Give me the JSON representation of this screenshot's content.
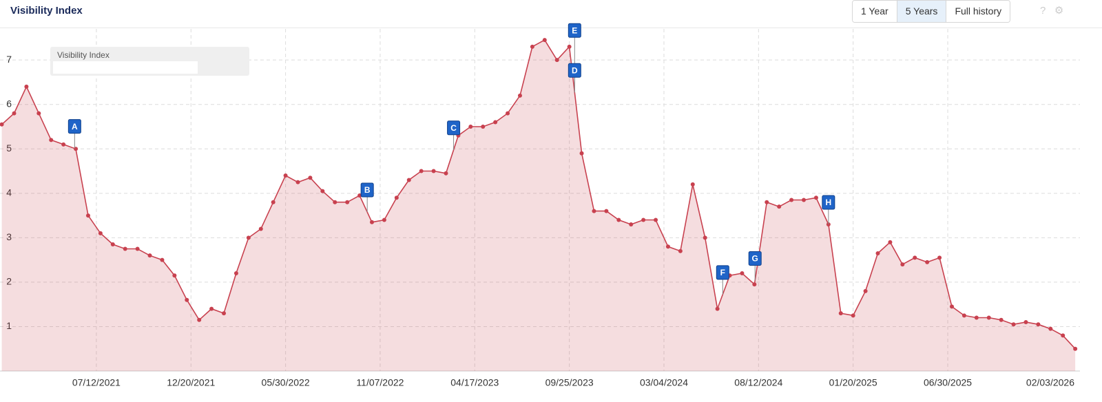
{
  "header": {
    "title": "Visibility Index",
    "buttons": [
      "1 Year",
      "5 Years",
      "Full history"
    ],
    "selected_button": 1
  },
  "chart_data": {
    "type": "area",
    "ylim": [
      0,
      7.7
    ],
    "yticks": [
      1,
      2,
      3,
      4,
      5,
      6,
      7
    ],
    "grid": true,
    "xlim": [
      "2021-01-29",
      "2026-02-03"
    ],
    "xticks": [
      {
        "value": "2021-07-12",
        "label": "07/12/2021"
      },
      {
        "value": "2021-12-20",
        "label": "12/20/2021"
      },
      {
        "value": "2022-05-30",
        "label": "05/30/2022"
      },
      {
        "value": "2022-11-07",
        "label": "11/07/2022"
      },
      {
        "value": "2023-04-17",
        "label": "04/17/2023"
      },
      {
        "value": "2023-09-25",
        "label": "09/25/2023"
      },
      {
        "value": "2024-03-04",
        "label": "03/04/2024"
      },
      {
        "value": "2024-08-12",
        "label": "08/12/2024"
      },
      {
        "value": "2025-01-20",
        "label": "01/20/2025"
      },
      {
        "value": "2025-06-30",
        "label": "06/30/2025"
      },
      {
        "value": "2026-02-03",
        "label": "02/03/2026"
      }
    ],
    "x": [
      "2021-02-01",
      "2021-02-22",
      "2021-03-15",
      "2021-04-05",
      "2021-04-26",
      "2021-05-17",
      "2021-06-07",
      "2021-06-28",
      "2021-07-19",
      "2021-08-09",
      "2021-08-30",
      "2021-09-20",
      "2021-10-11",
      "2021-11-01",
      "2021-11-22",
      "2021-12-13",
      "2022-01-03",
      "2022-01-24",
      "2022-02-14",
      "2022-03-07",
      "2022-03-28",
      "2022-04-18",
      "2022-05-09",
      "2022-05-30",
      "2022-06-20",
      "2022-07-11",
      "2022-08-01",
      "2022-08-22",
      "2022-09-12",
      "2022-10-03",
      "2022-10-24",
      "2022-11-14",
      "2022-12-05",
      "2022-12-26",
      "2023-01-16",
      "2023-02-06",
      "2023-02-27",
      "2023-03-20",
      "2023-04-10",
      "2023-05-01",
      "2023-05-22",
      "2023-06-12",
      "2023-07-03",
      "2023-07-24",
      "2023-08-14",
      "2023-09-04",
      "2023-09-25",
      "2023-10-16",
      "2023-11-06",
      "2023-11-27",
      "2023-12-18",
      "2024-01-08",
      "2024-01-29",
      "2024-02-19",
      "2024-03-11",
      "2024-04-01",
      "2024-04-22",
      "2024-05-13",
      "2024-06-03",
      "2024-06-24",
      "2024-07-15",
      "2024-08-05",
      "2024-08-26",
      "2024-09-16",
      "2024-10-07",
      "2024-10-28",
      "2024-11-18",
      "2024-12-09",
      "2024-12-30",
      "2025-01-20",
      "2025-02-10",
      "2025-03-03",
      "2025-03-24",
      "2025-04-14",
      "2025-05-05",
      "2025-05-26",
      "2025-06-16",
      "2025-07-07",
      "2025-07-28",
      "2025-08-18",
      "2025-09-08",
      "2025-09-29",
      "2025-10-20",
      "2025-11-10",
      "2025-12-01",
      "2025-12-22",
      "2026-01-12",
      "2026-02-02"
    ],
    "series": [
      {
        "name": "Visibility Index",
        "color": "#c8414f",
        "values": [
          5.55,
          5.8,
          6.4,
          5.8,
          5.2,
          5.1,
          5.0,
          3.5,
          3.1,
          2.85,
          2.75,
          2.75,
          2.6,
          2.5,
          2.15,
          1.6,
          1.15,
          1.4,
          1.3,
          2.2,
          3.0,
          3.2,
          3.8,
          4.4,
          4.25,
          4.35,
          4.05,
          3.8,
          3.8,
          3.95,
          3.35,
          3.4,
          3.9,
          4.3,
          4.5,
          4.5,
          4.45,
          5.3,
          5.5,
          5.5,
          5.6,
          5.8,
          6.2,
          7.3,
          7.45,
          7.0,
          7.3,
          4.9,
          3.6,
          3.6,
          3.4,
          3.3,
          3.4,
          3.4,
          2.8,
          2.7,
          4.2,
          3.0,
          1.4,
          2.15,
          2.2,
          1.95,
          3.8,
          3.7,
          3.85,
          3.85,
          3.9,
          3.3,
          1.3,
          1.25,
          1.8,
          2.65,
          2.9,
          2.4,
          2.55,
          2.45,
          2.55,
          1.45,
          1.25,
          1.2,
          1.2,
          1.15,
          1.05,
          1.1,
          1.05,
          0.95,
          0.8,
          0.5
        ]
      }
    ],
    "annotations": [
      {
        "label": "A",
        "x": "2021-06-05"
      },
      {
        "label": "B",
        "x": "2022-10-16"
      },
      {
        "label": "C",
        "x": "2023-03-12"
      },
      {
        "label": "E",
        "x": "2023-10-04"
      },
      {
        "label": "D",
        "x": "2023-10-04"
      },
      {
        "label": "F",
        "x": "2024-06-12"
      },
      {
        "label": "G",
        "x": "2024-08-06"
      },
      {
        "label": "H",
        "x": "2024-12-09"
      }
    ]
  }
}
